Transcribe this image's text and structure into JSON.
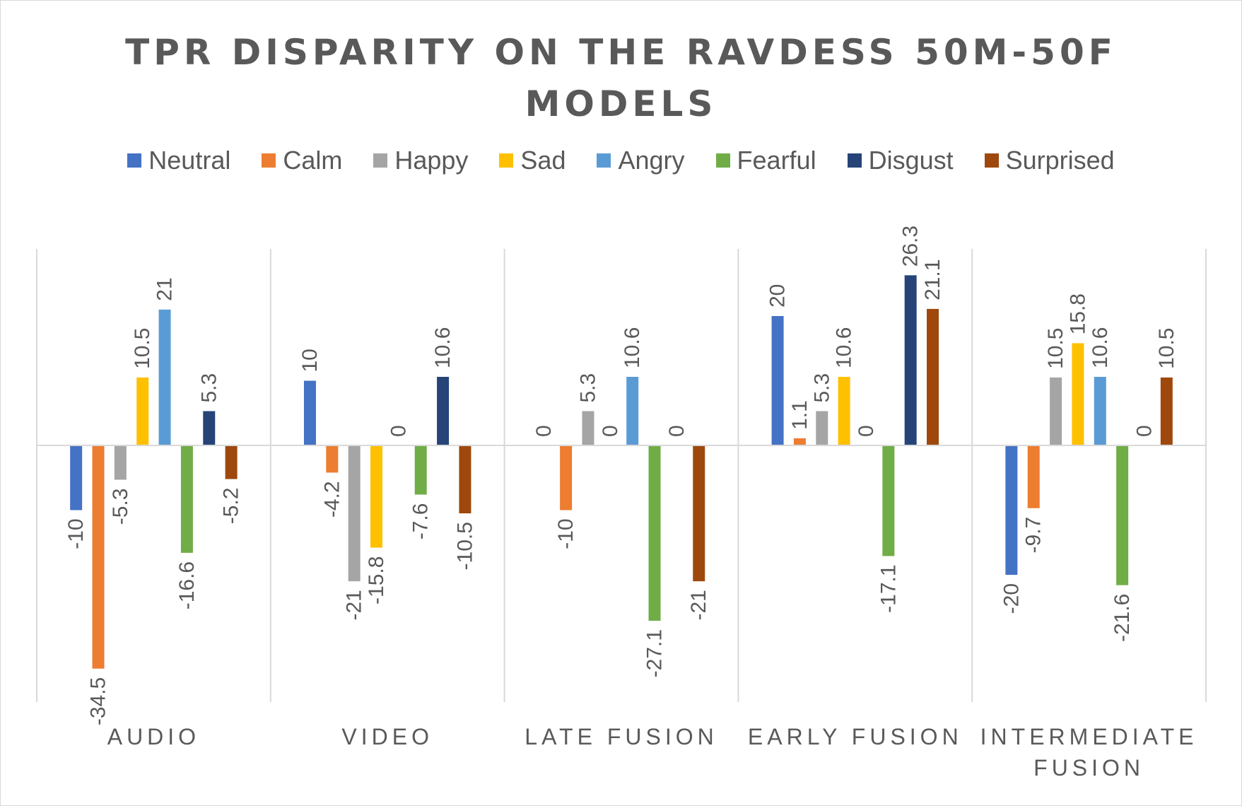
{
  "chart_data": {
    "type": "bar",
    "title": "TPR DISPARITY ON THE RAVDESS 50M-50F MODELS",
    "title_lines": [
      "TPR DISPARITY ON THE RAVDESS 50M-50F",
      "MODELS"
    ],
    "categories": [
      "AUDIO",
      "VIDEO",
      "LATE FUSION",
      "EARLY FUSION",
      "INTERMEDIATE FUSION"
    ],
    "category_label_lines": [
      [
        "AUDIO"
      ],
      [
        "VIDEO"
      ],
      [
        "LATE FUSION"
      ],
      [
        "EARLY FUSION"
      ],
      [
        "INTERMEDIATE",
        "FUSION"
      ]
    ],
    "series": [
      {
        "name": "Neutral",
        "color": "#4472C4",
        "values": [
          -10,
          10,
          0,
          20,
          -20
        ],
        "labels": [
          "-10",
          "10",
          "0",
          "20",
          "-20"
        ]
      },
      {
        "name": "Calm",
        "color": "#ED7D31",
        "values": [
          -34.5,
          -4.2,
          -10,
          1.1,
          -9.7
        ],
        "labels": [
          "-34.5",
          "-4.2",
          "-10",
          "1.1",
          "-9.7"
        ]
      },
      {
        "name": "Happy",
        "color": "#A5A5A5",
        "values": [
          -5.3,
          -21,
          5.3,
          5.3,
          10.5
        ],
        "labels": [
          "-5.3",
          "-21",
          "5.3",
          "5.3",
          "10.5"
        ]
      },
      {
        "name": "Sad",
        "color": "#FFC000",
        "values": [
          10.5,
          -15.8,
          0,
          10.6,
          15.8
        ],
        "labels": [
          "10.5",
          "-15.8",
          "0",
          "10.6",
          "15.8"
        ]
      },
      {
        "name": "Angry",
        "color": "#5B9BD5",
        "values": [
          21,
          0,
          10.6,
          0,
          10.6
        ],
        "labels": [
          "21",
          "0",
          "10.6",
          "0",
          "10.6"
        ]
      },
      {
        "name": "Fearful",
        "color": "#70AD47",
        "values": [
          -16.6,
          -7.6,
          -27.1,
          -17.1,
          -21.6
        ],
        "labels": [
          "-16.6",
          "-7.6",
          "-27.1",
          "-17.1",
          "-21.6"
        ]
      },
      {
        "name": "Disgust",
        "color": "#264478",
        "values": [
          5.3,
          10.6,
          0,
          26.3,
          0
        ],
        "labels": [
          "5.3",
          "10.6",
          "0",
          "26.3",
          "0"
        ]
      },
      {
        "name": "Surprised",
        "color": "#9E480E",
        "values": [
          -5.2,
          -10.5,
          -21,
          21.1,
          10.5
        ],
        "labels": [
          "-5.2",
          "-10.5",
          "-21",
          "21.1",
          "10.5"
        ]
      }
    ],
    "ylim": [
      -40,
      30
    ],
    "xlabel": "",
    "ylabel": "",
    "grid": "vertical category separators",
    "legend_position": "top"
  }
}
